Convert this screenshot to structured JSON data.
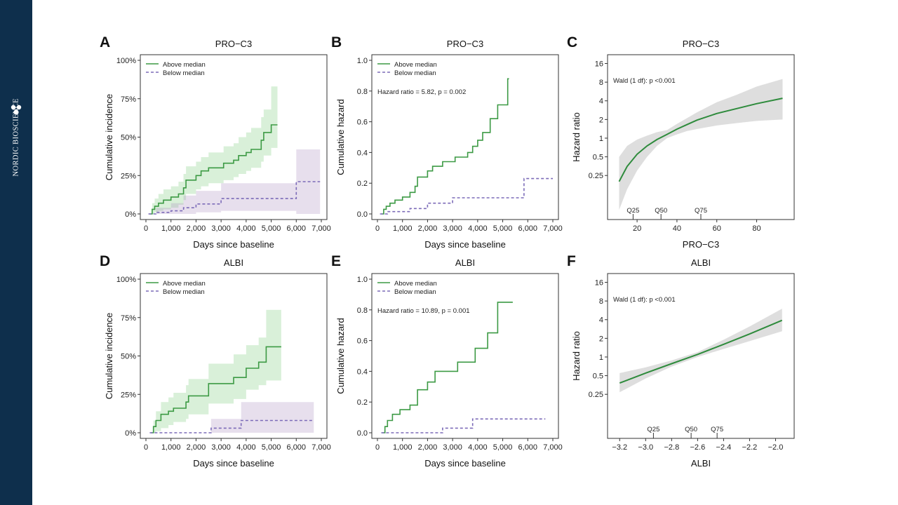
{
  "sidebar": {
    "brand": "NORDIC BIOSCIENCE",
    "logo_icon": "molecule-logo-icon",
    "bg_color": "#0e2f4c"
  },
  "colors": {
    "above": "#3c9a44",
    "above_band": "rgba(120,200,120,0.28)",
    "below": "#7c6bb8",
    "below_band": "rgba(170,140,190,0.28)",
    "spline": "#2e8b3c",
    "spline_band": "rgba(160,160,160,0.35)"
  },
  "chart_data": [
    {
      "id": "A",
      "panel_letter": "A",
      "type": "line",
      "title": "PRO−C3",
      "xlabel": "Days since baseline",
      "ylabel": "Cumulative incidence",
      "xlim": [
        0,
        7000
      ],
      "ylim": [
        0,
        1
      ],
      "x_ticks": [
        0,
        1000,
        2000,
        3000,
        4000,
        5000,
        6000,
        7000
      ],
      "x_tick_labels": [
        "0",
        "1,000",
        "2,000",
        "3,000",
        "4,000",
        "5,000",
        "6,000",
        "7,000"
      ],
      "y_ticks": [
        0,
        0.25,
        0.5,
        0.75,
        1.0
      ],
      "y_tick_labels": [
        "0%",
        "25%",
        "50%",
        "75%",
        "100%"
      ],
      "legend": [
        "Above median",
        "Below median"
      ],
      "legend_position": "top-left",
      "series": [
        {
          "name": "Above median",
          "style": "solid",
          "x": [
            150,
            250,
            350,
            500,
            700,
            1000,
            1300,
            1500,
            1600,
            2000,
            2200,
            2500,
            3100,
            3500,
            3700,
            4000,
            4200,
            4600,
            4700,
            5000,
            5250
          ],
          "y": [
            0,
            0.03,
            0.05,
            0.07,
            0.09,
            0.11,
            0.13,
            0.17,
            0.22,
            0.25,
            0.28,
            0.3,
            0.33,
            0.35,
            0.38,
            0.4,
            0.42,
            0.48,
            0.53,
            0.58,
            0.58
          ],
          "lower": [
            0,
            0.0,
            0.01,
            0.02,
            0.03,
            0.04,
            0.06,
            0.09,
            0.13,
            0.16,
            0.18,
            0.2,
            0.22,
            0.24,
            0.26,
            0.28,
            0.3,
            0.34,
            0.38,
            0.43,
            0.43
          ],
          "upper": [
            0,
            0.07,
            0.1,
            0.13,
            0.16,
            0.18,
            0.21,
            0.26,
            0.31,
            0.34,
            0.37,
            0.4,
            0.44,
            0.46,
            0.5,
            0.53,
            0.56,
            0.63,
            0.68,
            0.83,
            0.83
          ]
        },
        {
          "name": "Below median",
          "style": "dashed",
          "x": [
            100,
            400,
            1000,
            1500,
            2000,
            3000,
            5800,
            6000,
            6950
          ],
          "y": [
            0,
            0.01,
            0.02,
            0.04,
            0.065,
            0.1,
            0.1,
            0.21,
            0.21
          ],
          "lower": [
            0,
            0,
            0,
            0,
            0.01,
            0.02,
            0.02,
            0.0,
            0.0
          ],
          "upper": [
            0,
            0.04,
            0.07,
            0.12,
            0.15,
            0.2,
            0.2,
            0.42,
            0.42
          ]
        }
      ]
    },
    {
      "id": "B",
      "panel_letter": "B",
      "type": "line",
      "title": "PRO−C3",
      "xlabel": "Days since baseline",
      "ylabel": "Cumulative hazard",
      "xlim": [
        0,
        7000
      ],
      "ylim": [
        0,
        1
      ],
      "x_ticks": [
        0,
        1000,
        2000,
        3000,
        4000,
        5000,
        6000,
        7000
      ],
      "x_tick_labels": [
        "0",
        "1,000",
        "2,000",
        "3,000",
        "4,000",
        "5,000",
        "6,000",
        "7,000"
      ],
      "y_ticks": [
        0,
        0.2,
        0.4,
        0.6,
        0.8,
        1.0
      ],
      "y_tick_labels": [
        "0.0",
        "0.2",
        "0.4",
        "0.6",
        "0.8",
        "1.0"
      ],
      "legend": [
        "Above median",
        "Below median"
      ],
      "legend_position": "top-left",
      "annotation": "Hazard ratio = 5.82, p = 0.002",
      "series": [
        {
          "name": "Above median",
          "style": "solid",
          "x": [
            150,
            250,
            350,
            500,
            700,
            1000,
            1300,
            1500,
            1600,
            2000,
            2200,
            2600,
            3100,
            3600,
            3800,
            4000,
            4200,
            4500,
            4800,
            5200,
            5250
          ],
          "y": [
            0,
            0.03,
            0.05,
            0.07,
            0.09,
            0.11,
            0.14,
            0.18,
            0.24,
            0.28,
            0.31,
            0.34,
            0.37,
            0.4,
            0.44,
            0.48,
            0.53,
            0.62,
            0.71,
            0.88,
            0.88
          ]
        },
        {
          "name": "Below median",
          "style": "dashed",
          "x": [
            100,
            400,
            1300,
            2000,
            3000,
            5800,
            5850,
            7000
          ],
          "y": [
            0,
            0.015,
            0.035,
            0.07,
            0.105,
            0.105,
            0.23,
            0.23
          ]
        }
      ]
    },
    {
      "id": "C",
      "panel_letter": "C",
      "type": "line",
      "title": "PRO−C3",
      "xlabel": "PRO−C3",
      "ylabel": "Hazard ratio",
      "xlim": [
        8,
        96
      ],
      "ylim": [
        0.06,
        18
      ],
      "y_scale": "log",
      "x_ticks": [
        20,
        40,
        60,
        80
      ],
      "x_tick_labels": [
        "20",
        "40",
        "60",
        "80"
      ],
      "y_ticks": [
        0.25,
        0.5,
        1,
        2,
        4,
        8,
        16
      ],
      "y_tick_labels": [
        "0.25",
        "0.5",
        "1",
        "2",
        "4",
        "8",
        "16"
      ],
      "annotation": "Wald (1 df): p <0.001",
      "quantile_marks": [
        {
          "label": "Q25",
          "x": 18
        },
        {
          "label": "Q50",
          "x": 32
        },
        {
          "label": "Q75",
          "x": 52
        }
      ],
      "series": [
        {
          "name": "",
          "style": "solid",
          "x": [
            11,
            15,
            20,
            25,
            30,
            35,
            40,
            45,
            50,
            60,
            70,
            80,
            93
          ],
          "y": [
            0.2,
            0.35,
            0.55,
            0.75,
            0.95,
            1.15,
            1.4,
            1.65,
            1.95,
            2.5,
            3.0,
            3.6,
            4.4
          ],
          "lower": [
            0.07,
            0.15,
            0.3,
            0.5,
            0.75,
            1.0,
            1.15,
            1.3,
            1.4,
            1.6,
            1.75,
            1.9,
            2.0
          ],
          "upper": [
            0.5,
            0.75,
            0.95,
            1.1,
            1.25,
            1.35,
            1.7,
            2.1,
            2.6,
            3.8,
            5.0,
            6.8,
            9.0
          ]
        }
      ]
    },
    {
      "id": "D",
      "panel_letter": "D",
      "type": "line",
      "title": "ALBI",
      "xlabel": "Days since baseline",
      "ylabel": "Cumulative incidence",
      "xlim": [
        0,
        7000
      ],
      "ylim": [
        0,
        1
      ],
      "x_ticks": [
        0,
        1000,
        2000,
        3000,
        4000,
        5000,
        6000,
        7000
      ],
      "x_tick_labels": [
        "0",
        "1,000",
        "2,000",
        "3,000",
        "4,000",
        "5,000",
        "6,000",
        "7,000"
      ],
      "y_ticks": [
        0,
        0.25,
        0.5,
        0.75,
        1.0
      ],
      "y_tick_labels": [
        "0%",
        "25%",
        "50%",
        "75%",
        "100%"
      ],
      "legend": [
        "Above median",
        "Below median"
      ],
      "legend_position": "top-left",
      "series": [
        {
          "name": "Above median",
          "style": "solid",
          "x": [
            200,
            300,
            400,
            600,
            900,
            1100,
            1600,
            1700,
            2500,
            3500,
            4000,
            4500,
            4800,
            5400
          ],
          "y": [
            0,
            0.04,
            0.08,
            0.12,
            0.14,
            0.16,
            0.2,
            0.24,
            0.32,
            0.36,
            0.42,
            0.46,
            0.56,
            0.56
          ],
          "lower": [
            0,
            0.0,
            0.01,
            0.03,
            0.05,
            0.07,
            0.09,
            0.12,
            0.19,
            0.22,
            0.28,
            0.31,
            0.34,
            0.34
          ],
          "upper": [
            0,
            0.08,
            0.14,
            0.2,
            0.23,
            0.26,
            0.31,
            0.35,
            0.45,
            0.51,
            0.57,
            0.62,
            0.8,
            0.8
          ]
        },
        {
          "name": "Below median",
          "style": "dashed",
          "x": [
            150,
            2600,
            3800,
            6700
          ],
          "y": [
            0,
            0.03,
            0.08,
            0.08
          ],
          "lower": [
            0,
            0.0,
            0.0,
            0.0
          ],
          "upper": [
            0,
            0.09,
            0.2,
            0.2
          ]
        }
      ]
    },
    {
      "id": "E",
      "panel_letter": "E",
      "type": "line",
      "title": "ALBI",
      "xlabel": "Days since baseline",
      "ylabel": "Cumulative hazard",
      "xlim": [
        0,
        7000
      ],
      "ylim": [
        0,
        1
      ],
      "x_ticks": [
        0,
        1000,
        2000,
        3000,
        4000,
        5000,
        6000,
        7000
      ],
      "x_tick_labels": [
        "0",
        "1,000",
        "2,000",
        "3,000",
        "4,000",
        "5,000",
        "6,000",
        "7,000"
      ],
      "y_ticks": [
        0,
        0.2,
        0.4,
        0.6,
        0.8,
        1.0
      ],
      "y_tick_labels": [
        "0.0",
        "0.2",
        "0.4",
        "0.6",
        "0.8",
        "1.0"
      ],
      "legend": [
        "Above median",
        "Below median"
      ],
      "legend_position": "top-left",
      "annotation": "Hazard ratio = 10.89, p = 0.001",
      "series": [
        {
          "name": "Above median",
          "style": "solid",
          "x": [
            200,
            300,
            400,
            600,
            900,
            1300,
            1600,
            2000,
            2300,
            3200,
            3900,
            4400,
            4800,
            5400
          ],
          "y": [
            0,
            0.04,
            0.08,
            0.12,
            0.15,
            0.18,
            0.28,
            0.33,
            0.4,
            0.46,
            0.55,
            0.65,
            0.85,
            0.85
          ]
        },
        {
          "name": "Below median",
          "style": "dashed",
          "x": [
            150,
            2600,
            3800,
            6700
          ],
          "y": [
            0,
            0.03,
            0.09,
            0.09
          ]
        }
      ]
    },
    {
      "id": "F",
      "panel_letter": "F",
      "type": "line",
      "title": "ALBI",
      "xlabel": "ALBI",
      "ylabel": "Hazard ratio",
      "xlim": [
        -3.25,
        -1.9
      ],
      "ylim": [
        0.06,
        18
      ],
      "y_scale": "log",
      "x_ticks": [
        -3.2,
        -3.0,
        -2.8,
        -2.6,
        -2.4,
        -2.2,
        -2.0
      ],
      "x_tick_labels": [
        "−3.2",
        "−3.0",
        "−2.8",
        "−2.6",
        "−2.4",
        "−2.2",
        "−2.0"
      ],
      "y_ticks": [
        0.25,
        0.5,
        1,
        2,
        4,
        8,
        16
      ],
      "y_tick_labels": [
        "0.25",
        "0.5",
        "1",
        "2",
        "4",
        "8",
        "16"
      ],
      "annotation": "Wald (1 df): p <0.001",
      "quantile_marks": [
        {
          "label": "Q25",
          "x": -2.94
        },
        {
          "label": "Q50",
          "x": -2.65
        },
        {
          "label": "Q75",
          "x": -2.45
        }
      ],
      "series": [
        {
          "name": "",
          "style": "solid",
          "x": [
            -3.2,
            -3.0,
            -2.8,
            -2.6,
            -2.4,
            -2.2,
            -1.95
          ],
          "y": [
            0.38,
            0.55,
            0.78,
            1.1,
            1.6,
            2.35,
            3.9
          ],
          "lower": [
            0.27,
            0.45,
            0.7,
            1.0,
            1.35,
            1.8,
            2.6
          ],
          "upper": [
            0.55,
            0.68,
            0.88,
            1.2,
            1.9,
            3.1,
            6.0
          ]
        }
      ]
    }
  ]
}
